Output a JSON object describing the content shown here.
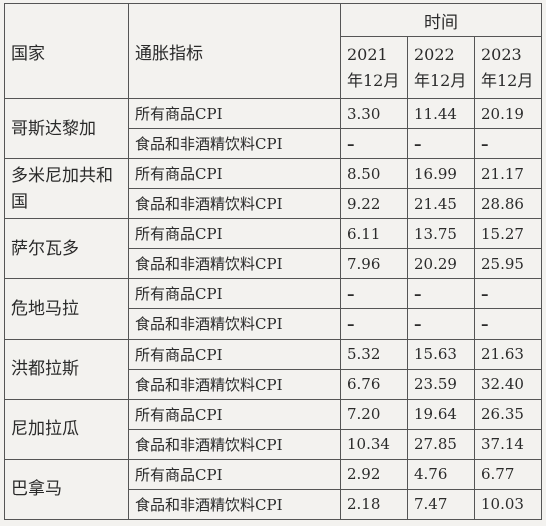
{
  "header": {
    "country": "国家",
    "indicator": "通胀指标",
    "time": "时间",
    "years": [
      "2021年12月",
      "2022年12月",
      "2023年12月"
    ]
  },
  "rows": [
    {
      "country": "哥斯达黎加",
      "indicators": [
        {
          "label": "所有商品CPI",
          "values": [
            "3.30",
            "11.44",
            "20.19"
          ]
        },
        {
          "label": "食品和非酒精饮料CPI",
          "values": [
            "–",
            "–",
            "–"
          ]
        }
      ]
    },
    {
      "country": "多米尼加共和国",
      "indicators": [
        {
          "label": "所有商品CPI",
          "values": [
            "8.50",
            "16.99",
            "21.17"
          ]
        },
        {
          "label": "食品和非酒精饮料CPI",
          "values": [
            "9.22",
            "21.45",
            "28.86"
          ]
        }
      ]
    },
    {
      "country": "萨尔瓦多",
      "indicators": [
        {
          "label": "所有商品CPI",
          "values": [
            "6.11",
            "13.75",
            "15.27"
          ]
        },
        {
          "label": "食品和非酒精饮料CPI",
          "values": [
            "7.96",
            "20.29",
            "25.95"
          ]
        }
      ]
    },
    {
      "country": "危地马拉",
      "indicators": [
        {
          "label": "所有商品CPI",
          "values": [
            "–",
            "–",
            "–"
          ]
        },
        {
          "label": "食品和非酒精饮料CPI",
          "values": [
            "–",
            "–",
            "–"
          ]
        }
      ]
    },
    {
      "country": "洪都拉斯",
      "indicators": [
        {
          "label": "所有商品CPI",
          "values": [
            "5.32",
            "15.63",
            "21.63"
          ]
        },
        {
          "label": "食品和非酒精饮料CPI",
          "values": [
            "6.76",
            "23.59",
            "32.40"
          ]
        }
      ]
    },
    {
      "country": "尼加拉瓜",
      "indicators": [
        {
          "label": "所有商品CPI",
          "values": [
            "7.20",
            "19.64",
            "26.35"
          ]
        },
        {
          "label": "食品和非酒精饮料CPI",
          "values": [
            "10.34",
            "27.85",
            "37.14"
          ]
        }
      ]
    },
    {
      "country": "巴拿马",
      "indicators": [
        {
          "label": "所有商品CPI",
          "values": [
            "2.92",
            "4.76",
            "6.77"
          ]
        },
        {
          "label": "食品和非酒精饮料CPI",
          "values": [
            "2.18",
            "7.47",
            "10.03"
          ]
        }
      ]
    }
  ]
}
